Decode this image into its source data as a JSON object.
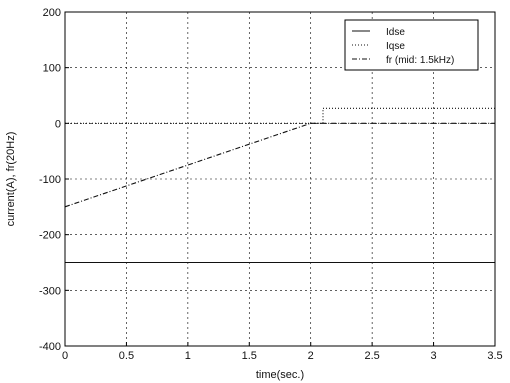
{
  "chart_data": {
    "type": "line",
    "xlabel": "time(sec.)",
    "ylabel": "current(A), fr(20Hz)",
    "xlim": [
      0,
      3.5
    ],
    "ylim": [
      -400,
      200
    ],
    "xticks": [
      0,
      0.5,
      1,
      1.5,
      2,
      2.5,
      3,
      3.5
    ],
    "xtick_labels": [
      "0",
      "0.5",
      "1",
      "1.5",
      "2",
      "2.5",
      "3",
      "3.5"
    ],
    "yticks": [
      -400,
      -300,
      -200,
      -100,
      0,
      100,
      200
    ],
    "ytick_labels": [
      "-400",
      "-300",
      "-200",
      "-100",
      "0",
      "100",
      "200"
    ],
    "grid": true,
    "legend_position": "top-right",
    "series": [
      {
        "name": "Idse",
        "style": "solid",
        "color": "#111111",
        "x": [
          0,
          3.5
        ],
        "y": [
          -250,
          -250
        ]
      },
      {
        "name": "Iqse",
        "style": "dotted",
        "color": "#111111",
        "x": [
          0,
          2.1,
          2.1,
          3.5
        ],
        "y": [
          0,
          0,
          27,
          27
        ]
      },
      {
        "name": "fr (mid: 1.5kHz)",
        "style": "dashdot",
        "color": "#111111",
        "x": [
          0,
          2.0,
          3.5
        ],
        "y": [
          -150,
          0,
          0
        ]
      }
    ]
  }
}
